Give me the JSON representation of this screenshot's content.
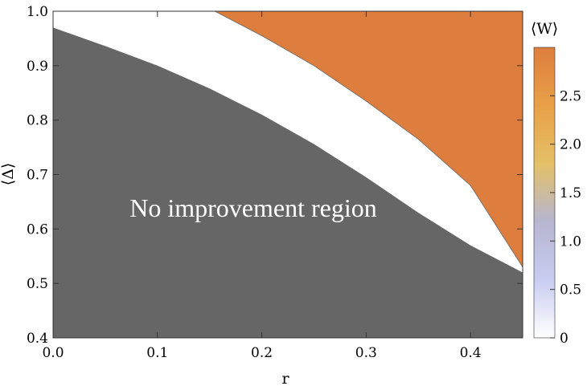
{
  "chart_data": {
    "type": "heatmap",
    "subtype": "contour",
    "xlabel": "r",
    "ylabel": "⟨Δ⟩",
    "xlim": [
      0.0,
      0.45
    ],
    "ylim": [
      0.4,
      1.0
    ],
    "x_ticks": [
      "0.0",
      "0.1",
      "0.2",
      "0.3",
      "0.4"
    ],
    "y_ticks": [
      "0.4",
      "0.5",
      "0.6",
      "0.7",
      "0.8",
      "0.9",
      "1.0"
    ],
    "colorbar": {
      "title": "⟨W⟩",
      "range": [
        0,
        3.0
      ],
      "ticks": [
        "0",
        "0.5",
        "1.0",
        "1.5",
        "2.0",
        "2.5"
      ],
      "colors": [
        "#ffffff",
        "#c8ccf0",
        "#b6b6d0",
        "#e4c068",
        "#e8a048",
        "#dd7e3e"
      ]
    },
    "no_improvement_region": {
      "label": "No improvement region",
      "color": "#666666",
      "boundary": [
        {
          "r": 0.0,
          "delta": 0.97
        },
        {
          "r": 0.05,
          "delta": 0.936
        },
        {
          "r": 0.1,
          "delta": 0.9
        },
        {
          "r": 0.15,
          "delta": 0.858
        },
        {
          "r": 0.2,
          "delta": 0.81
        },
        {
          "r": 0.25,
          "delta": 0.756
        },
        {
          "r": 0.3,
          "delta": 0.695
        },
        {
          "r": 0.35,
          "delta": 0.63
        },
        {
          "r": 0.4,
          "delta": 0.57
        },
        {
          "r": 0.45,
          "delta": 0.52
        }
      ]
    },
    "zero_contour": [
      {
        "r": 0.155,
        "delta": 1.0
      },
      {
        "r": 0.2,
        "delta": 0.955
      },
      {
        "r": 0.25,
        "delta": 0.9
      },
      {
        "r": 0.3,
        "delta": 0.835
      },
      {
        "r": 0.35,
        "delta": 0.765
      },
      {
        "r": 0.4,
        "delta": 0.68
      },
      {
        "r": 0.45,
        "delta": 0.53
      }
    ],
    "contour_levels": [
      0.1,
      0.2,
      0.3,
      0.4,
      0.5,
      0.6,
      0.7,
      0.8,
      0.9,
      1.0,
      1.1,
      1.2,
      1.3,
      1.4,
      1.5,
      1.6,
      1.7,
      1.8,
      1.9,
      2.0,
      2.1,
      2.2,
      2.3,
      2.4,
      2.5,
      2.6,
      2.7,
      2.8,
      2.9
    ],
    "max_value": 3.0
  }
}
